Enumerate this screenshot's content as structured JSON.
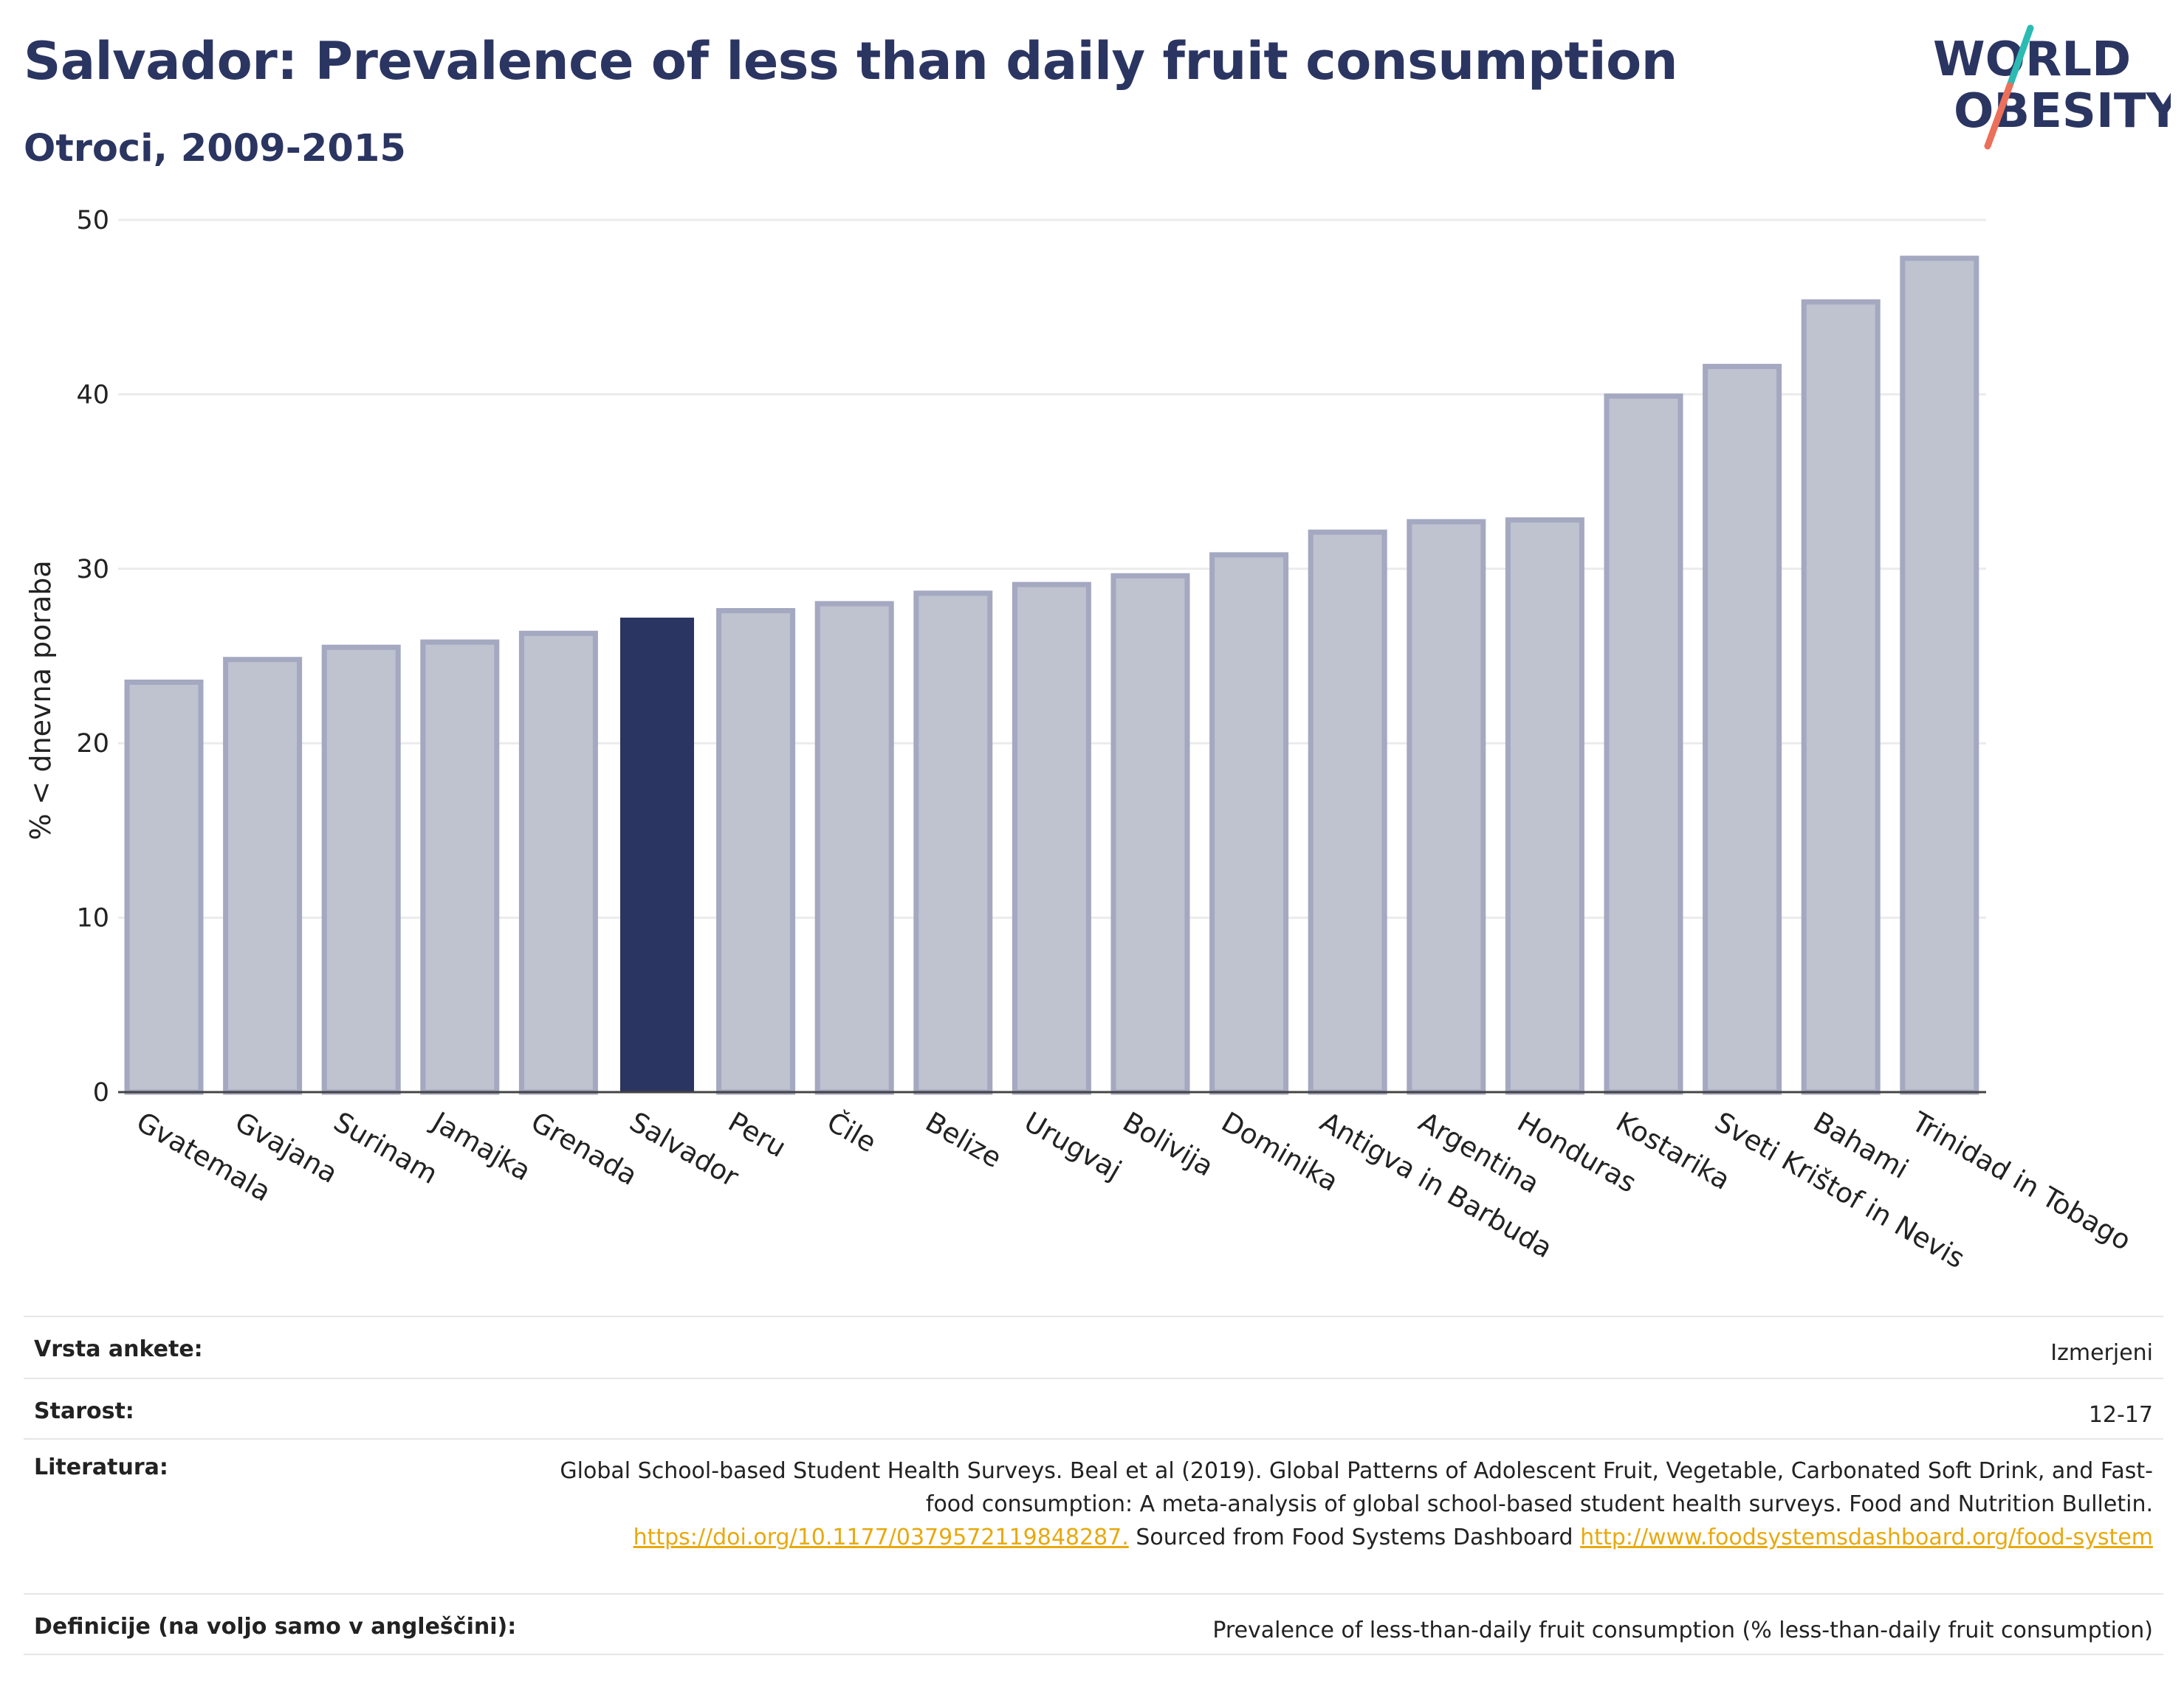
{
  "header": {
    "title": "Salvador: Prevalence of less than daily fruit consumption",
    "subtitle": "Otroci, 2009-2015"
  },
  "logo": {
    "line1": "WORLD",
    "line2": "OBESITY",
    "icon": "world-obesity-logo"
  },
  "chart_data": {
    "type": "bar",
    "ylabel": "% < dnevna poraba",
    "ylim": [
      0,
      50
    ],
    "yticks": [
      0,
      10,
      20,
      30,
      40,
      50
    ],
    "categories": [
      "Gvatemala",
      "Gvajana",
      "Surinam",
      "Jamajka",
      "Grenada",
      "Salvador",
      "Peru",
      "Čile",
      "Belize",
      "Urugvaj",
      "Bolivija",
      "Dominika",
      "Antigva in Barbuda",
      "Argentina",
      "Honduras",
      "Kostarika",
      "Sveti Krištof in Nevis",
      "Bahami",
      "Trinidad in Tobago"
    ],
    "values": [
      23.5,
      24.8,
      25.5,
      25.8,
      26.3,
      27.2,
      27.6,
      28.0,
      28.6,
      29.1,
      29.6,
      30.8,
      32.1,
      32.7,
      32.8,
      39.9,
      41.6,
      45.3,
      47.8
    ],
    "highlight": "Salvador",
    "colors": {
      "highlight": "#2b3561",
      "other": "#bfc2cf",
      "other_stroke": "#a4a8c0"
    },
    "grid": true
  },
  "info": {
    "survey_label": "Vrsta ankete:",
    "survey_value": "Izmerjeni",
    "age_label": "Starost:",
    "age_value": "12-17",
    "lit_label": "Literatura:",
    "lit_text_1": "Global School-based Student Health Surveys. Beal et al (2019). Global Patterns of Adolescent Fruit, Vegetable, Carbonated Soft Drink, and Fast-food consumption: A meta-analysis of global school-based student health surveys. Food and Nutrition Bulletin.",
    "lit_link_1": "https://doi.org/10.1177/0379572119848287.",
    "lit_text_2": "Sourced from Food Systems Dashboard",
    "lit_link_2": "http://www.foodsystemsdashboard.org/food-system",
    "def_label": "Definicije (na voljo samo v angleščini):",
    "def_value": "Prevalence of less-than-daily fruit consumption (% less-than-daily fruit consumption)"
  }
}
